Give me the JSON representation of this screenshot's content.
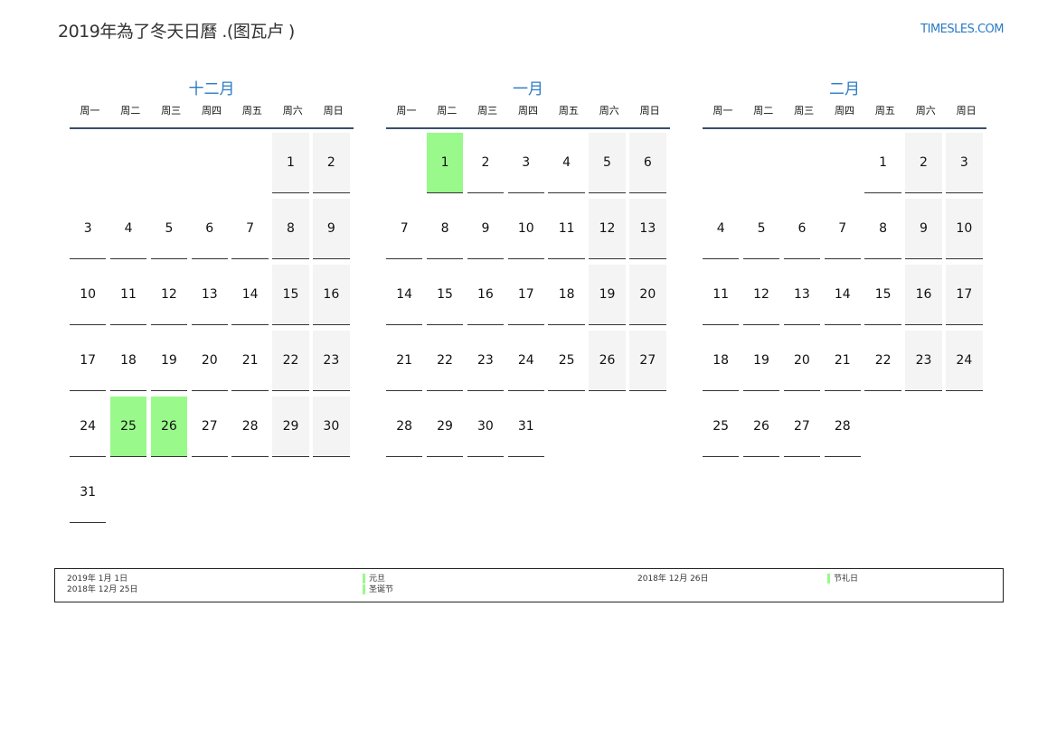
{
  "header": {
    "title": "2019年為了冬天日曆 .(图瓦卢 )",
    "logo": "TIMESLES.COM"
  },
  "weekdays": [
    "周一",
    "周二",
    "周三",
    "周四",
    "周五",
    "周六",
    "周日"
  ],
  "colors": {
    "accent": "#2a7bc4",
    "holiday": "#99f98a",
    "weekend": "#f4f4f4"
  },
  "months": [
    {
      "name": "十二月",
      "weeks": [
        [
          null,
          null,
          null,
          null,
          null,
          1,
          2
        ],
        [
          3,
          4,
          5,
          6,
          7,
          8,
          9
        ],
        [
          10,
          11,
          12,
          13,
          14,
          15,
          16
        ],
        [
          17,
          18,
          19,
          20,
          21,
          22,
          23
        ],
        [
          24,
          25,
          26,
          27,
          28,
          29,
          30
        ],
        [
          31,
          null,
          null,
          null,
          null,
          null,
          null
        ]
      ],
      "holidays": [
        25,
        26
      ]
    },
    {
      "name": "一月",
      "weeks": [
        [
          null,
          1,
          2,
          3,
          4,
          5,
          6
        ],
        [
          7,
          8,
          9,
          10,
          11,
          12,
          13
        ],
        [
          14,
          15,
          16,
          17,
          18,
          19,
          20
        ],
        [
          21,
          22,
          23,
          24,
          25,
          26,
          27
        ],
        [
          28,
          29,
          30,
          31,
          null,
          null,
          null
        ]
      ],
      "holidays": [
        1
      ]
    },
    {
      "name": "二月",
      "weeks": [
        [
          null,
          null,
          null,
          null,
          1,
          2,
          3
        ],
        [
          4,
          5,
          6,
          7,
          8,
          9,
          10
        ],
        [
          11,
          12,
          13,
          14,
          15,
          16,
          17
        ],
        [
          18,
          19,
          20,
          21,
          22,
          23,
          24
        ],
        [
          25,
          26,
          27,
          28,
          null,
          null,
          null
        ]
      ],
      "holidays": []
    }
  ],
  "legend": [
    {
      "date": "2019年 1月 1日",
      "name": "元旦"
    },
    {
      "date": "2018年 12月 25日",
      "name": "圣诞节"
    },
    {
      "date": "2018年 12月 26日",
      "name": "节礼日"
    }
  ]
}
